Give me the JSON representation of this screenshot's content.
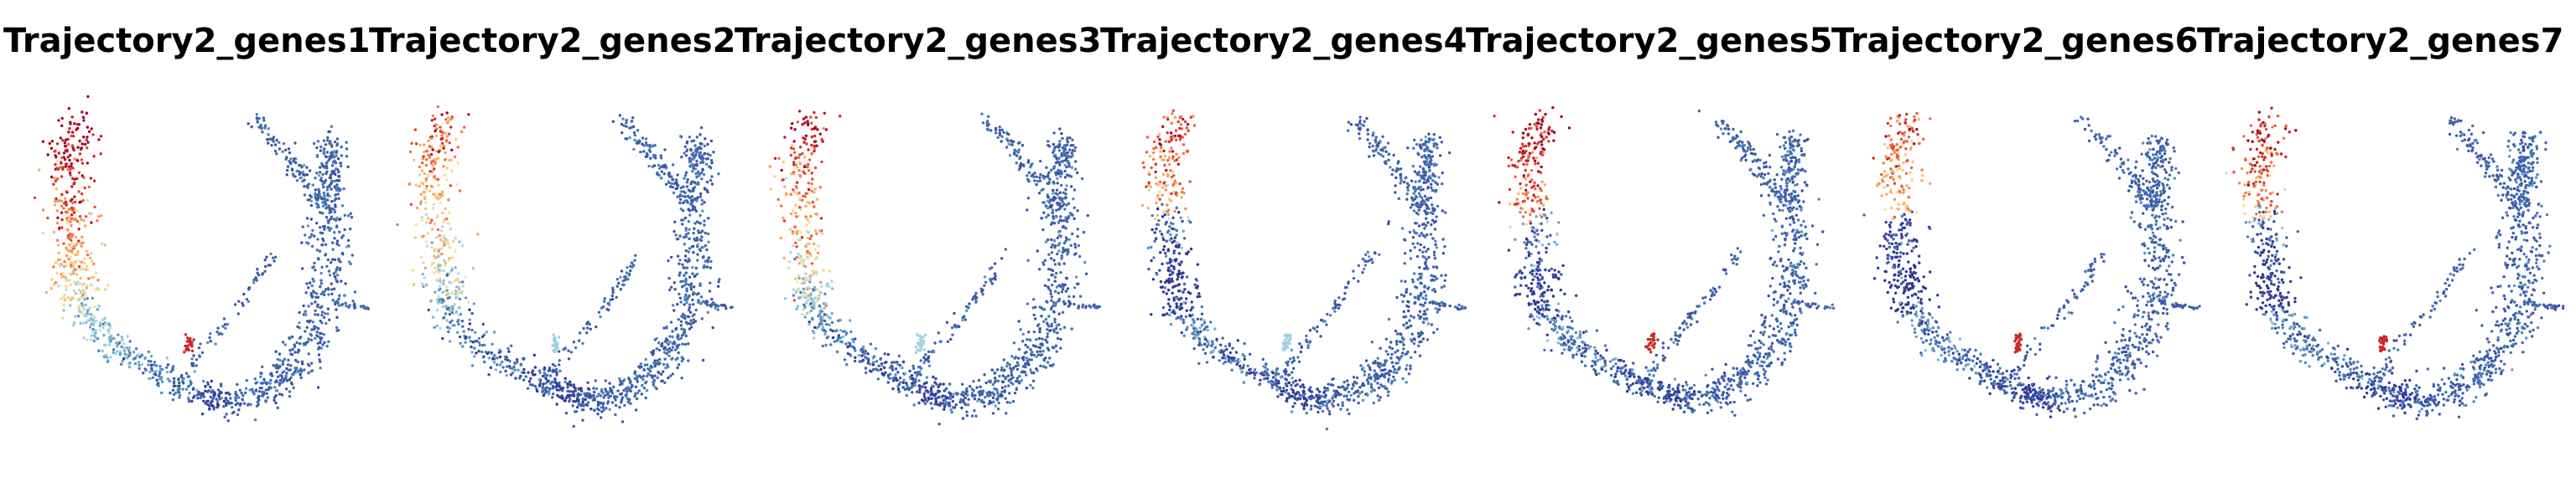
{
  "figure": {
    "panels": [
      {
        "title": "Trajectory2_genes1"
      },
      {
        "title": "Trajectory2_genes2"
      },
      {
        "title": "Trajectory2_genes3"
      },
      {
        "title": "Trajectory2_genes4"
      },
      {
        "title": "Trajectory2_genes5"
      },
      {
        "title": "Trajectory2_genes6"
      },
      {
        "title": "Trajectory2_genes7"
      }
    ]
  },
  "colors": {
    "colormap": [
      "#313695",
      "#4575b4",
      "#74add1",
      "#abd9e9",
      "#fee090",
      "#fdae61",
      "#f46d43",
      "#d73027",
      "#a50026"
    ],
    "background": "#ffffff"
  },
  "chart_data": [
    {
      "type": "scatter",
      "title": "Trajectory2_genes1",
      "grid": false,
      "axes": "off",
      "colormap": "RdYlBu_r",
      "high_expression_regions": [
        "left-upper-lobe",
        "bottom-center"
      ],
      "relative_intensity": 1.0
    },
    {
      "type": "scatter",
      "title": "Trajectory2_genes2",
      "grid": false,
      "axes": "off",
      "colormap": "RdYlBu_r",
      "high_expression_regions": [
        "left-upper-lobe"
      ],
      "relative_intensity": 0.75
    },
    {
      "type": "scatter",
      "title": "Trajectory2_genes3",
      "grid": false,
      "axes": "off",
      "colormap": "RdYlBu_r",
      "high_expression_regions": [
        "left-upper-lobe"
      ],
      "relative_intensity": 0.85
    },
    {
      "type": "scatter",
      "title": "Trajectory2_genes4",
      "grid": false,
      "axes": "off",
      "colormap": "RdYlBu_r",
      "high_expression_regions": [
        "left-upper-lobe"
      ],
      "relative_intensity": 0.8
    },
    {
      "type": "scatter",
      "title": "Trajectory2_genes5",
      "grid": false,
      "axes": "off",
      "colormap": "RdYlBu_r",
      "high_expression_regions": [
        "left-upper-lobe",
        "bottom-center"
      ],
      "relative_intensity": 0.95
    },
    {
      "type": "scatter",
      "title": "Trajectory2_genes6",
      "grid": false,
      "axes": "off",
      "colormap": "RdYlBu_r",
      "high_expression_regions": [
        "left-upper-lobe",
        "bottom-center"
      ],
      "relative_intensity": 0.75
    },
    {
      "type": "scatter",
      "title": "Trajectory2_genes7",
      "grid": false,
      "axes": "off",
      "colormap": "RdYlBu_r",
      "high_expression_regions": [
        "left-upper-lobe",
        "bottom-center"
      ],
      "relative_intensity": 0.85
    }
  ]
}
